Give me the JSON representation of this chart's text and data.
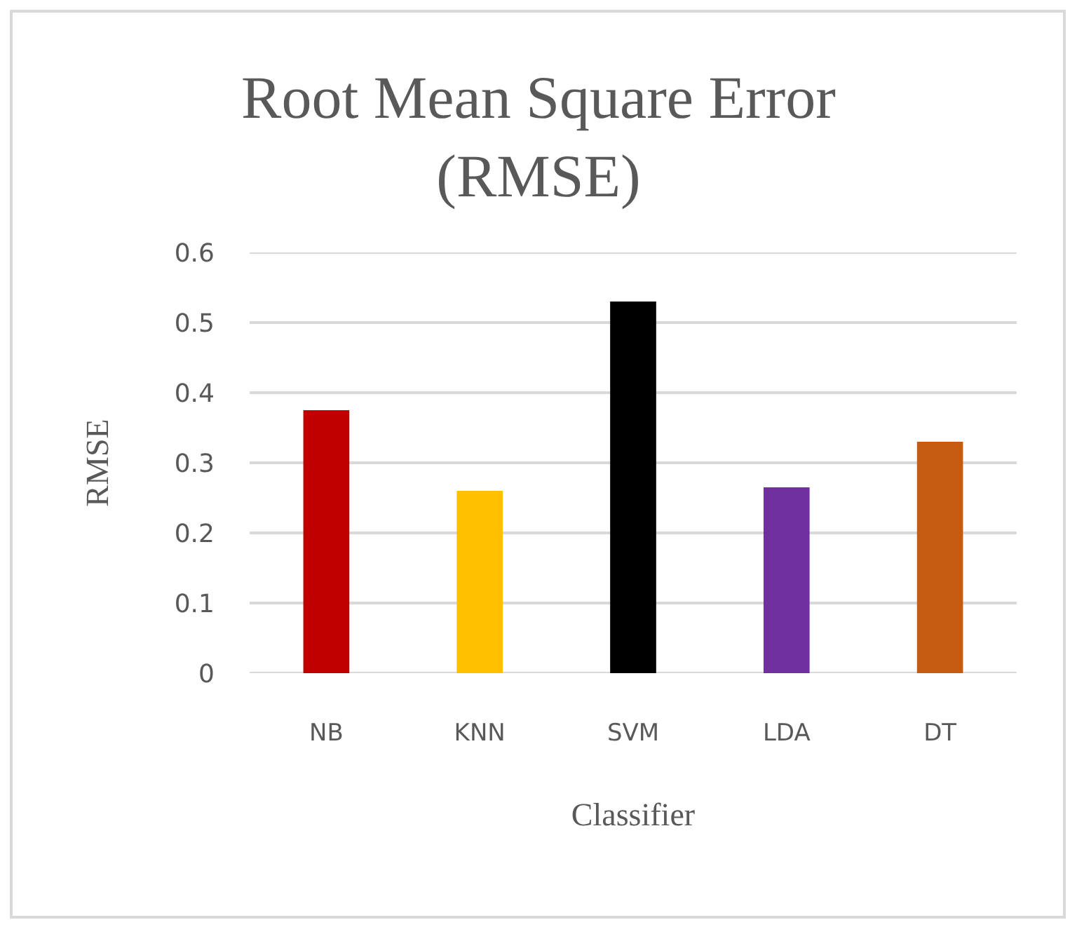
{
  "chart_data": {
    "type": "bar",
    "title": "Root Mean Square Error (RMSE)",
    "xlabel": "Classifier",
    "ylabel": "RMSE",
    "categories": [
      "NB",
      "KNN",
      "SVM",
      "LDA",
      "DT"
    ],
    "values": [
      0.375,
      0.26,
      0.53,
      0.265,
      0.33
    ],
    "colors": [
      "#c00000",
      "#ffc000",
      "#000000",
      "#7030a0",
      "#c55a11"
    ],
    "ylim": [
      0,
      0.6
    ],
    "yticks": [
      0,
      0.1,
      0.2,
      0.3,
      0.4,
      0.5,
      0.6
    ],
    "grid": "y"
  }
}
